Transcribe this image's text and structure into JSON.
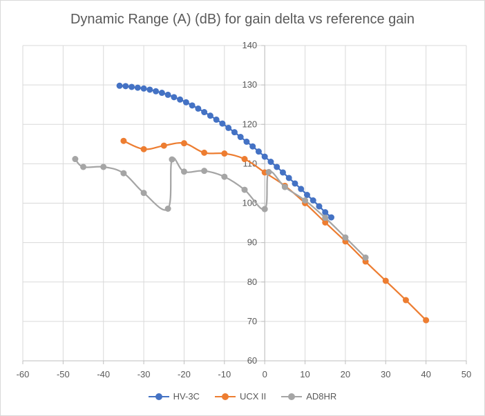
{
  "chart_data": {
    "type": "line",
    "title": "Dynamic Range (A) (dB) for gain delta vs reference gain",
    "xlabel": "",
    "ylabel": "",
    "xlim": [
      -60,
      50
    ],
    "ylim": [
      60,
      140
    ],
    "xticks": [
      -60,
      -50,
      -40,
      -30,
      -20,
      -10,
      0,
      10,
      20,
      30,
      40,
      50
    ],
    "yticks": [
      60,
      70,
      80,
      90,
      100,
      110,
      120,
      130,
      140
    ],
    "grid": true,
    "legend_position": "bottom",
    "series": [
      {
        "name": "HV-3C",
        "color": "#4472C4",
        "x": [
          -36,
          -34.5,
          -33,
          -31.5,
          -30,
          -28.5,
          -27,
          -25.5,
          -24,
          -22.5,
          -21,
          -19.5,
          -18,
          -16.5,
          -15,
          -13.5,
          -12,
          -10.5,
          -9,
          -7.5,
          -6,
          -4.5,
          -3,
          -1.5,
          0,
          1.5,
          3,
          4.5,
          6,
          7.5,
          9,
          10.5,
          12,
          13.5,
          15,
          16.5
        ],
        "y": [
          129.8,
          129.7,
          129.5,
          129.3,
          129.1,
          128.8,
          128.4,
          128.0,
          127.5,
          126.9,
          126.3,
          125.6,
          124.8,
          124.0,
          123.1,
          122.2,
          121.2,
          120.2,
          119.1,
          118.0,
          116.8,
          115.6,
          114.4,
          113.1,
          111.8,
          110.5,
          109.2,
          107.8,
          106.4,
          105.0,
          103.6,
          102.1,
          100.7,
          99.2,
          97.7,
          96.4
        ]
      },
      {
        "name": "UCX II",
        "color": "#ED7D31",
        "x": [
          -35,
          -30,
          -25,
          -20,
          -15,
          -10,
          -5,
          0,
          5,
          10,
          15,
          20,
          25,
          30,
          35,
          40
        ],
        "y": [
          115.8,
          113.7,
          114.6,
          115.2,
          112.8,
          112.6,
          111.2,
          107.8,
          104.4,
          100.0,
          95.1,
          90.3,
          85.2,
          80.3,
          75.4,
          70.3
        ]
      },
      {
        "name": "AD8HR",
        "color": "#A5A5A5",
        "x": [
          -47,
          -45,
          -40,
          -35,
          -30,
          -24,
          -23,
          -20,
          -15,
          -10,
          -5,
          0,
          1,
          5,
          10,
          15,
          20,
          25
        ],
        "y": [
          111.2,
          109.2,
          109.2,
          107.6,
          102.6,
          98.6,
          111.1,
          108.0,
          108.2,
          106.7,
          103.4,
          98.5,
          107.9,
          104.1,
          100.7,
          96.3,
          91.3,
          86.2
        ]
      }
    ]
  }
}
